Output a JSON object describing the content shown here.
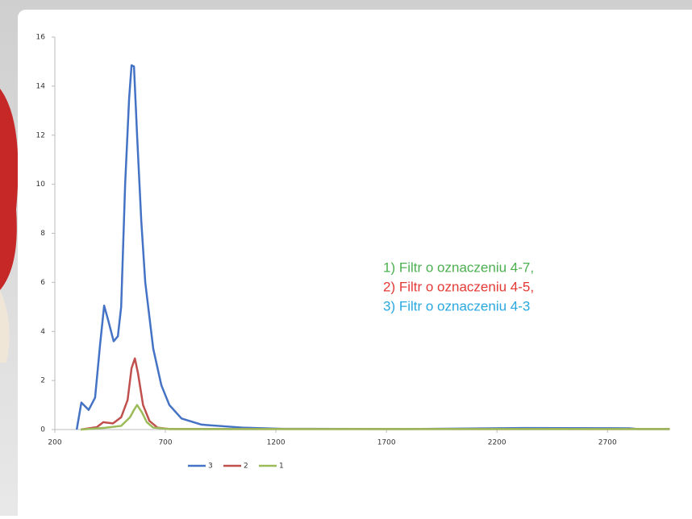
{
  "chart_data": {
    "type": "line",
    "xlim": [
      200,
      2980
    ],
    "xticks": [
      200,
      700,
      1200,
      1700,
      2200,
      2700
    ],
    "ylim": [
      0,
      16
    ],
    "yticks": [
      0,
      2,
      4,
      6,
      8,
      10,
      12,
      14,
      16
    ],
    "grid": false,
    "legend": "bottom",
    "series": [
      {
        "name": "3",
        "color": "#4472c4",
        "x": [
          299,
          320,
          353,
          382,
          405,
          423,
          440,
          466,
          485,
          500,
          518,
          536,
          547,
          558,
          572,
          591,
          609,
          645,
          682,
          718,
          773,
          864,
          1047,
          1229,
          1777,
          2325,
          2800,
          2835,
          2981
        ],
        "values": [
          0,
          1.1,
          0.8,
          1.3,
          3.5,
          5.05,
          4.5,
          3.6,
          3.8,
          5,
          10,
          13.5,
          14.85,
          14.8,
          12,
          8.5,
          6,
          3.3,
          1.8,
          1,
          0.45,
          0.2,
          0.08,
          0.03,
          0.02,
          0.06,
          0.05,
          0.02,
          0.02
        ]
      },
      {
        "name": "2",
        "color": "#c0504d",
        "x": [
          317,
          390,
          419,
          463,
          500,
          529,
          547,
          562,
          576,
          599,
          628,
          664,
          718,
          2981
        ],
        "values": [
          0,
          0.1,
          0.3,
          0.25,
          0.5,
          1.2,
          2.5,
          2.9,
          2.3,
          1,
          0.35,
          0.08,
          0.02,
          0.02
        ]
      },
      {
        "name": "1",
        "color": "#9bbb59",
        "x": [
          317,
          426,
          500,
          540,
          558,
          572,
          594,
          616,
          645,
          718,
          2981
        ],
        "values": [
          0,
          0.07,
          0.15,
          0.5,
          0.8,
          1.0,
          0.7,
          0.3,
          0.08,
          0.02,
          0.02
        ]
      }
    ],
    "annotations": [
      {
        "text": "1) Filtr o oznaczeniu 4-7,",
        "color": "#4caf50"
      },
      {
        "text": "2) Filtr o oznaczeniu 4-5,",
        "color": "#e53935"
      },
      {
        "text": "3) Filtr o oznaczeniu 4-3",
        "color": "#29a8e0"
      }
    ]
  }
}
